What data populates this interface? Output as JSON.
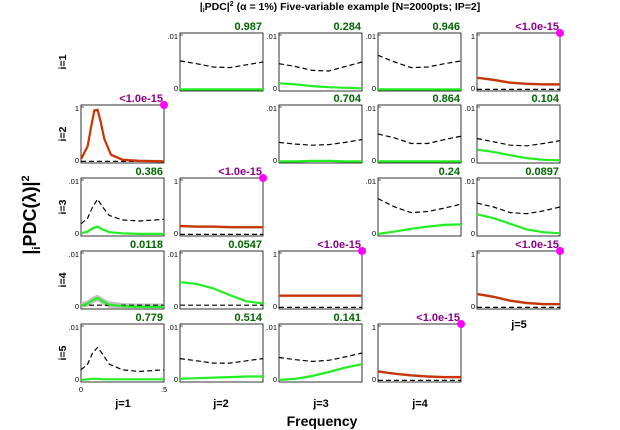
{
  "title": {
    "prefix": "|",
    "sub_i": "i",
    "mid": "PDC|",
    "sup2": "2",
    "rest": " (α = 1%) Five-variable example [N=2000pts; IP=2]"
  },
  "ylabel": {
    "prefix": "|",
    "sub_i": "i",
    "mid": "PDC(λ)|",
    "sup2": "2"
  },
  "xlabel": "Frequency",
  "colors": {
    "green_curve": "#22ee22",
    "red_curve": "#cc3300",
    "threshold": "#000000",
    "pval_significant": "#880088",
    "pval_nonsignificant": "#006600",
    "significance_marker": "#ff00ff",
    "confidence_band": "#bbbbbb"
  },
  "row_labels": [
    "i=1",
    "i=2",
    "i=3",
    "i=4",
    "i=5"
  ],
  "col_labels": [
    "j=1",
    "j=2",
    "j=3",
    "j=4",
    "j=5"
  ],
  "chart_data": {
    "type": "line",
    "title": "|iPDC|^2 (α = 1%) Five-variable example [N=2000pts; IP=2]",
    "xlabel": "Frequency",
    "ylabel": "|iPDC(λ)|^2",
    "xlim": [
      0,
      0.5
    ],
    "x_ticks": [
      "0",
      ".5"
    ],
    "grid": false,
    "panels": [
      {
        "row": 1,
        "col": 2,
        "pvalue": "0.987",
        "significant": false,
        "ylim": [
          0,
          0.01
        ],
        "y_ticks": [
          "0",
          ".01"
        ],
        "x": [
          0,
          0.1,
          0.2,
          0.3,
          0.4,
          0.5
        ],
        "series": [
          {
            "values": [
              0.0001,
              0.0001,
              0.0001,
              0.0001,
              0.0001,
              0.0001
            ]
          },
          {
            "style": "dashed",
            "values": [
              0.0052,
              0.0047,
              0.0041,
              0.004,
              0.0045,
              0.005
            ]
          }
        ]
      },
      {
        "row": 1,
        "col": 3,
        "pvalue": "0.284",
        "significant": false,
        "ylim": [
          0,
          0.01
        ],
        "y_ticks": [
          "0",
          ".01"
        ],
        "x": [
          0,
          0.1,
          0.2,
          0.3,
          0.4,
          0.5
        ],
        "series": [
          {
            "values": [
              0.0012,
              0.001,
              0.0007,
              0.0005,
              0.0004,
              0.0003
            ]
          },
          {
            "style": "dashed",
            "values": [
              0.0047,
              0.0042,
              0.0035,
              0.0034,
              0.0042,
              0.005
            ]
          }
        ]
      },
      {
        "row": 1,
        "col": 4,
        "pvalue": "0.946",
        "significant": false,
        "ylim": [
          0,
          0.01
        ],
        "y_ticks": [
          "0",
          ".01"
        ],
        "x": [
          0,
          0.1,
          0.2,
          0.3,
          0.4,
          0.5
        ],
        "series": [
          {
            "values": [
              0.0001,
              0.0001,
              0.0001,
              0.0001,
              0.0001,
              0.0001
            ]
          },
          {
            "style": "dashed",
            "values": [
              0.0062,
              0.005,
              0.004,
              0.0041,
              0.0047,
              0.0052
            ]
          }
        ]
      },
      {
        "row": 1,
        "col": 5,
        "pvalue": "<1.0e-15",
        "significant": true,
        "ylim": [
          0,
          1
        ],
        "y_ticks": [
          "0",
          "1"
        ],
        "x": [
          0,
          0.1,
          0.2,
          0.3,
          0.4,
          0.5
        ],
        "series": [
          {
            "values": [
              0.22,
              0.18,
              0.13,
              0.11,
              0.1,
              0.1
            ]
          },
          {
            "style": "dashed",
            "values": [
              0.01,
              0.01,
              0.01,
              0.01,
              0.01,
              0.01
            ]
          }
        ]
      },
      {
        "row": 2,
        "col": 1,
        "pvalue": "<1.0e-15",
        "significant": true,
        "ylim": [
          0,
          1
        ],
        "y_ticks": [
          "0",
          "1"
        ],
        "x": [
          0,
          0.04,
          0.06,
          0.08,
          0.1,
          0.12,
          0.14,
          0.18,
          0.25,
          0.35,
          0.5
        ],
        "series": [
          {
            "values": [
              0.05,
              0.28,
              0.62,
              0.92,
              0.93,
              0.7,
              0.42,
              0.13,
              0.04,
              0.02,
              0.01
            ]
          },
          {
            "style": "dashed",
            "values": [
              0.01,
              0.01,
              0.01,
              0.01,
              0.01,
              0.01,
              0.01,
              0.01,
              0.01,
              0.01,
              0.01
            ]
          }
        ]
      },
      {
        "row": 2,
        "col": 3,
        "pvalue": "0.704",
        "significant": false,
        "ylim": [
          0,
          0.01
        ],
        "y_ticks": [
          "0",
          ".01"
        ],
        "x": [
          0,
          0.1,
          0.2,
          0.3,
          0.4,
          0.5
        ],
        "series": [
          {
            "values": [
              0.0001,
              0.0001,
              0.0002,
              0.0002,
              0.0001,
              0.0001
            ]
          },
          {
            "style": "dashed",
            "values": [
              0.0035,
              0.0032,
              0.003,
              0.0031,
              0.0035,
              0.004
            ]
          }
        ]
      },
      {
        "row": 2,
        "col": 4,
        "pvalue": "0.864",
        "significant": false,
        "ylim": [
          0,
          0.01
        ],
        "y_ticks": [
          "0",
          ".01"
        ],
        "x": [
          0,
          0.1,
          0.2,
          0.3,
          0.4,
          0.5
        ],
        "series": [
          {
            "values": [
              0.0001,
              0.0001,
              0.0001,
              0.0001,
              0.0001,
              0.0001
            ]
          },
          {
            "style": "dashed",
            "values": [
              0.005,
              0.0043,
              0.0033,
              0.0033,
              0.004,
              0.0046
            ]
          }
        ]
      },
      {
        "row": 2,
        "col": 5,
        "pvalue": "0.104",
        "significant": false,
        "ylim": [
          0,
          0.01
        ],
        "y_ticks": [
          "0",
          ".01"
        ],
        "x": [
          0,
          0.1,
          0.2,
          0.3,
          0.4,
          0.5
        ],
        "series": [
          {
            "values": [
              0.0022,
              0.0018,
              0.0012,
              0.0007,
              0.0004,
              0.0003
            ]
          },
          {
            "style": "dashed",
            "values": [
              0.0042,
              0.0036,
              0.003,
              0.0029,
              0.0033,
              0.0038
            ]
          }
        ]
      },
      {
        "row": 3,
        "col": 1,
        "pvalue": "0.386",
        "significant": false,
        "ylim": [
          0,
          0.01
        ],
        "y_ticks": [
          "0",
          ".01"
        ],
        "x": [
          0,
          0.04,
          0.07,
          0.1,
          0.13,
          0.17,
          0.25,
          0.35,
          0.5
        ],
        "series": [
          {
            "values": [
              0.0003,
              0.0006,
              0.0012,
              0.0015,
              0.001,
              0.0005,
              0.0003,
              0.0002,
              0.0002
            ]
          },
          {
            "style": "dashed",
            "values": [
              0.002,
              0.003,
              0.005,
              0.0064,
              0.005,
              0.0035,
              0.0027,
              0.0025,
              0.0028
            ]
          }
        ]
      },
      {
        "row": 3,
        "col": 2,
        "pvalue": "<1.0e-15",
        "significant": true,
        "ylim": [
          0,
          1
        ],
        "y_ticks": [
          "0",
          "1"
        ],
        "x": [
          0,
          0.1,
          0.2,
          0.3,
          0.4,
          0.5
        ],
        "series": [
          {
            "values": [
              0.16,
              0.15,
              0.15,
              0.14,
              0.14,
              0.14
            ]
          },
          {
            "style": "dashed",
            "values": [
              0.01,
              0.01,
              0.01,
              0.01,
              0.01,
              0.01
            ]
          }
        ]
      },
      {
        "row": 3,
        "col": 4,
        "pvalue": "0.24",
        "significant": false,
        "ylim": [
          0,
          0.01
        ],
        "y_ticks": [
          "0",
          ".01"
        ],
        "x": [
          0,
          0.1,
          0.2,
          0.3,
          0.4,
          0.5
        ],
        "series": [
          {
            "values": [
              0.0002,
              0.0006,
              0.0011,
              0.0015,
              0.0018,
              0.0019
            ]
          },
          {
            "style": "dashed",
            "values": [
              0.0065,
              0.005,
              0.004,
              0.0042,
              0.0048,
              0.0055
            ]
          }
        ]
      },
      {
        "row": 3,
        "col": 5,
        "pvalue": "0.0897",
        "significant": false,
        "ylim": [
          0,
          0.01
        ],
        "y_ticks": [
          "0",
          ".01"
        ],
        "x": [
          0,
          0.1,
          0.2,
          0.3,
          0.4,
          0.5
        ],
        "series": [
          {
            "values": [
              0.0037,
              0.003,
              0.002,
              0.001,
              0.0005,
              0.0003
            ]
          },
          {
            "style": "dashed",
            "values": [
              0.0057,
              0.005,
              0.004,
              0.0038,
              0.0043,
              0.005
            ]
          }
        ]
      },
      {
        "row": 4,
        "col": 1,
        "pvalue": "0.0118",
        "significant": false,
        "ylim": [
          0,
          0.01
        ],
        "y_ticks": [
          "0",
          ".01"
        ],
        "x": [
          0,
          0.04,
          0.07,
          0.1,
          0.13,
          0.17,
          0.25,
          0.35,
          0.5
        ],
        "series": [
          {
            "values": [
              0.0004,
              0.0008,
              0.0014,
              0.0018,
              0.0012,
              0.0006,
              0.0003,
              0.0002,
              0.0002
            ]
          },
          {
            "style": "dashed",
            "values": [
              0.0005,
              0.0005,
              0.0005,
              0.0005,
              0.0005,
              0.0005,
              0.0005,
              0.0005,
              0.0005
            ]
          }
        ]
      },
      {
        "row": 4,
        "col": 2,
        "pvalue": "0.0547",
        "significant": false,
        "ylim": [
          0,
          0.01
        ],
        "y_ticks": [
          "0",
          ".01"
        ],
        "x": [
          0,
          0.1,
          0.2,
          0.3,
          0.4,
          0.5
        ],
        "series": [
          {
            "values": [
              0.0046,
              0.0043,
              0.0035,
              0.0023,
              0.0012,
              0.0008
            ]
          },
          {
            "style": "dashed",
            "values": [
              0.0005,
              0.0005,
              0.0005,
              0.0005,
              0.0005,
              0.0005
            ]
          }
        ]
      },
      {
        "row": 4,
        "col": 3,
        "pvalue": "<1.0e-15",
        "significant": true,
        "ylim": [
          0,
          1
        ],
        "y_ticks": [
          "0",
          "1"
        ],
        "x": [
          0,
          0.1,
          0.2,
          0.3,
          0.4,
          0.5
        ],
        "series": [
          {
            "values": [
              0.22,
              0.22,
              0.22,
              0.22,
              0.22,
              0.22
            ]
          },
          {
            "style": "dashed",
            "values": [
              0.01,
              0.01,
              0.01,
              0.01,
              0.01,
              0.01
            ]
          }
        ]
      },
      {
        "row": 4,
        "col": 5,
        "pvalue": "<1.0e-15",
        "significant": true,
        "ylim": [
          0,
          1
        ],
        "y_ticks": [
          "0",
          "1"
        ],
        "x": [
          0,
          0.1,
          0.2,
          0.3,
          0.4,
          0.5
        ],
        "series": [
          {
            "values": [
              0.25,
              0.2,
              0.13,
              0.09,
              0.07,
              0.07
            ]
          },
          {
            "style": "dashed",
            "values": [
              0.01,
              0.01,
              0.01,
              0.01,
              0.01,
              0.01
            ]
          }
        ]
      },
      {
        "row": 5,
        "col": 1,
        "pvalue": "0.779",
        "significant": false,
        "ylim": [
          0,
          0.01
        ],
        "y_ticks": [
          "0",
          ".01"
        ],
        "x": [
          0,
          0.04,
          0.07,
          0.1,
          0.13,
          0.17,
          0.25,
          0.35,
          0.5
        ],
        "series": [
          {
            "values": [
              0.0002,
              0.0003,
              0.0004,
              0.0004,
              0.0003,
              0.0003,
              0.0003,
              0.0003,
              0.0003
            ]
          },
          {
            "style": "dashed",
            "values": [
              0.002,
              0.003,
              0.005,
              0.006,
              0.0048,
              0.003,
              0.002,
              0.0017,
              0.002
            ]
          }
        ]
      },
      {
        "row": 5,
        "col": 2,
        "pvalue": "0.514",
        "significant": false,
        "ylim": [
          0,
          0.01
        ],
        "y_ticks": [
          "0",
          ".01"
        ],
        "x": [
          0,
          0.1,
          0.2,
          0.3,
          0.4,
          0.5
        ],
        "series": [
          {
            "values": [
              0.0004,
              0.0005,
              0.0006,
              0.0007,
              0.0008,
              0.0008
            ]
          },
          {
            "style": "dashed",
            "values": [
              0.004,
              0.0036,
              0.0032,
              0.0032,
              0.0036,
              0.004
            ]
          }
        ]
      },
      {
        "row": 5,
        "col": 3,
        "pvalue": "0.141",
        "significant": false,
        "ylim": [
          0,
          0.01
        ],
        "y_ticks": [
          "0",
          ".01"
        ],
        "x": [
          0,
          0.1,
          0.2,
          0.3,
          0.4,
          0.5
        ],
        "series": [
          {
            "values": [
              0.0002,
              0.0004,
              0.0009,
              0.0016,
              0.0024,
              0.003
            ]
          },
          {
            "style": "dashed",
            "values": [
              0.0042,
              0.0038,
              0.0035,
              0.0037,
              0.0043,
              0.005
            ]
          }
        ]
      },
      {
        "row": 5,
        "col": 4,
        "pvalue": "<1.0e-15",
        "significant": true,
        "ylim": [
          0,
          1
        ],
        "y_ticks": [
          "0",
          "1"
        ],
        "x": [
          0,
          0.1,
          0.2,
          0.3,
          0.4,
          0.5
        ],
        "series": [
          {
            "values": [
              0.17,
              0.13,
              0.1,
              0.08,
              0.07,
              0.07
            ]
          },
          {
            "style": "dashed",
            "values": [
              0.01,
              0.01,
              0.01,
              0.01,
              0.01,
              0.01
            ]
          }
        ]
      }
    ]
  }
}
